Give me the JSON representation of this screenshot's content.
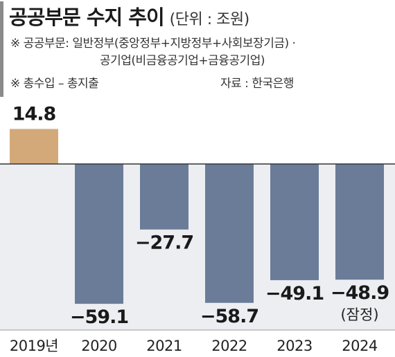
{
  "header": {
    "title": "공공부문 수지 추이",
    "unit": "(단위 : 조원)",
    "notes": [
      "※ 공공부문: 일반정부(중앙정부+지방정부+사회보장기금) ·",
      "공기업(비금융공기업+금융공기업)",
      "※ 총수입 – 총지출"
    ],
    "source": "자료 : 한국은행"
  },
  "colors": {
    "positive_bar": "#d4a97a",
    "negative_bar": "#6b7c99",
    "background_band": "#eceef1",
    "baseline": "#333333"
  },
  "chart_data": {
    "type": "bar",
    "categories": [
      "2019년",
      "2020",
      "2021",
      "2022",
      "2023",
      "2024"
    ],
    "values": [
      14.8,
      -59.1,
      -27.7,
      -58.7,
      -49.1,
      -48.9
    ],
    "labels": [
      "14.8",
      "−59.1",
      "−27.7",
      "−58.7",
      "−49.1",
      "−48.9"
    ],
    "annotations": [
      {
        "category": "2024",
        "text": "(잠정)"
      }
    ],
    "title": "공공부문 수지 추이",
    "unit": "(단위 : 조원)",
    "ylim": [
      -65,
      15
    ],
    "grid": false,
    "legend": "none"
  }
}
